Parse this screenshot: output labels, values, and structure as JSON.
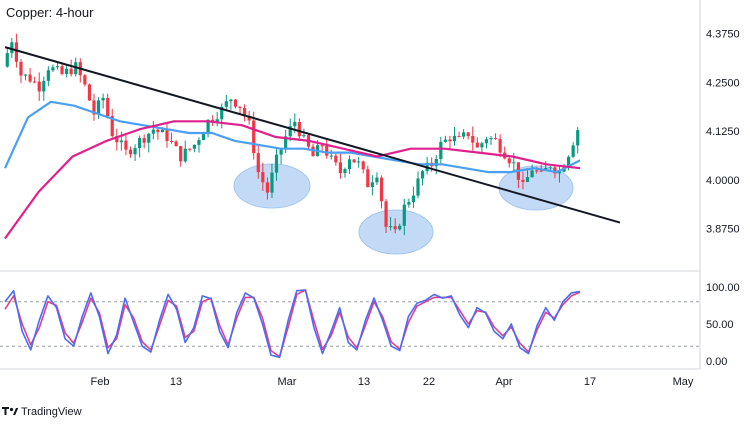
{
  "chart_data": [
    {
      "type": "candlestick",
      "title": "Copper: 4-hour",
      "ylim": [
        3.8,
        4.43
      ],
      "y_ticks": [
        "4.3750",
        "4.2500",
        "4.1250",
        "4.0000",
        "3.8750"
      ],
      "x_ticks": [
        "Feb",
        "13",
        "Mar",
        "13",
        "22",
        "Apr",
        "17",
        "May"
      ],
      "colors": {
        "up": "#089981",
        "down": "#f23645",
        "trendline": "#131722",
        "ma_fast": "#4a9ff5",
        "ma_slow": "#e0208c",
        "zone": "#bcd7f5",
        "zone_edge": "#9cc3ef"
      },
      "price_close_path": [
        {
          "x": 0,
          "y": 4.29
        },
        {
          "x": 2,
          "y": 4.36
        },
        {
          "x": 4,
          "y": 4.27
        },
        {
          "x": 6,
          "y": 4.26
        },
        {
          "x": 8,
          "y": 4.24
        },
        {
          "x": 10,
          "y": 4.29
        },
        {
          "x": 13,
          "y": 4.27
        },
        {
          "x": 16,
          "y": 4.29
        },
        {
          "x": 18,
          "y": 4.24
        },
        {
          "x": 20,
          "y": 4.17
        },
        {
          "x": 22,
          "y": 4.21
        },
        {
          "x": 24,
          "y": 4.12
        },
        {
          "x": 27,
          "y": 4.07
        },
        {
          "x": 30,
          "y": 4.1
        },
        {
          "x": 33,
          "y": 4.13
        },
        {
          "x": 36,
          "y": 4.11
        },
        {
          "x": 39,
          "y": 4.06
        },
        {
          "x": 42,
          "y": 4.09
        },
        {
          "x": 45,
          "y": 4.15
        },
        {
          "x": 48,
          "y": 4.18
        },
        {
          "x": 50,
          "y": 4.21
        },
        {
          "x": 52,
          "y": 4.19
        },
        {
          "x": 54,
          "y": 4.14
        },
        {
          "x": 56,
          "y": 4.02
        },
        {
          "x": 58,
          "y": 3.97
        },
        {
          "x": 60,
          "y": 4.05
        },
        {
          "x": 62,
          "y": 4.11
        },
        {
          "x": 64,
          "y": 4.15
        },
        {
          "x": 66,
          "y": 4.1
        },
        {
          "x": 68,
          "y": 4.06
        },
        {
          "x": 70,
          "y": 4.09
        },
        {
          "x": 72,
          "y": 4.05
        },
        {
          "x": 74,
          "y": 4.02
        },
        {
          "x": 76,
          "y": 4.06
        },
        {
          "x": 78,
          "y": 4.04
        },
        {
          "x": 80,
          "y": 3.99
        },
        {
          "x": 82,
          "y": 4.02
        },
        {
          "x": 84,
          "y": 3.88
        },
        {
          "x": 86,
          "y": 3.86
        },
        {
          "x": 88,
          "y": 3.93
        },
        {
          "x": 90,
          "y": 3.97
        },
        {
          "x": 92,
          "y": 4.02
        },
        {
          "x": 94,
          "y": 4.04
        },
        {
          "x": 96,
          "y": 4.09
        },
        {
          "x": 98,
          "y": 4.11
        },
        {
          "x": 100,
          "y": 4.1
        },
        {
          "x": 102,
          "y": 4.12
        },
        {
          "x": 104,
          "y": 4.08
        },
        {
          "x": 106,
          "y": 4.11
        },
        {
          "x": 108,
          "y": 4.1
        },
        {
          "x": 110,
          "y": 4.07
        },
        {
          "x": 112,
          "y": 4.04
        },
        {
          "x": 114,
          "y": 3.98
        },
        {
          "x": 116,
          "y": 4.03
        },
        {
          "x": 118,
          "y": 4.01
        },
        {
          "x": 120,
          "y": 4.04
        },
        {
          "x": 122,
          "y": 4.02
        },
        {
          "x": 124,
          "y": 4.07
        },
        {
          "x": 126,
          "y": 4.13
        }
      ],
      "series": [
        {
          "values": [
            4.03,
            4.16,
            4.2,
            4.19,
            4.17,
            4.15,
            4.14,
            4.13,
            4.12,
            4.12,
            4.1,
            4.09,
            4.08,
            4.08,
            4.07,
            4.07,
            4.06,
            4.05,
            4.04,
            4.04,
            4.03,
            4.02,
            4.02,
            4.03,
            4.02,
            4.05
          ]
        },
        {
          "values": [
            3.85,
            3.97,
            4.06,
            4.1,
            4.13,
            4.15,
            4.15,
            4.14,
            4.11,
            4.1,
            4.08,
            4.06,
            4.08,
            4.08,
            4.07,
            4.06,
            4.04,
            4.03
          ]
        }
      ],
      "trendline": [
        {
          "x": 0,
          "y": 4.34
        },
        {
          "x": 126,
          "y": 3.92
        }
      ],
      "highlight_zones": [
        "Mar low",
        "mid-Mar low",
        "early-Apr low"
      ]
    },
    {
      "type": "line",
      "title": "",
      "ylim": [
        0,
        100
      ],
      "y_ticks": [
        "100.00",
        "50.00",
        "0.00"
      ],
      "reference_lines": [
        80,
        20
      ],
      "series": [
        {
          "values": [
            80,
            95,
            40,
            15,
            55,
            88,
            72,
            30,
            20,
            60,
            92,
            60,
            10,
            35,
            85,
            52,
            20,
            12,
            55,
            90,
            70,
            25,
            45,
            88,
            84,
            40,
            18,
            65,
            92,
            85,
            50,
            8,
            5,
            55,
            95,
            96,
            45,
            10,
            40,
            72,
            25,
            15,
            55,
            85,
            55,
            20,
            14,
            60,
            78,
            82,
            90,
            85,
            88,
            62,
            45,
            72,
            65,
            40,
            30,
            50,
            18,
            10,
            48,
            72,
            55,
            80,
            92,
            94
          ]
        },
        {
          "values": [
            70,
            88,
            50,
            22,
            45,
            80,
            75,
            38,
            24,
            52,
            85,
            65,
            18,
            30,
            76,
            58,
            26,
            15,
            48,
            82,
            74,
            32,
            40,
            80,
            85,
            48,
            22,
            58,
            86,
            86,
            58,
            14,
            6,
            46,
            90,
            96,
            54,
            16,
            34,
            66,
            32,
            18,
            48,
            80,
            60,
            26,
            16,
            52,
            74,
            80,
            86,
            86,
            86,
            68,
            50,
            68,
            66,
            46,
            34,
            46,
            24,
            12,
            42,
            66,
            58,
            76,
            88,
            93
          ]
        }
      ],
      "colors": {
        "k": "#4a6cf7",
        "d": "#e0408c",
        "grid": "#9aa0a6"
      }
    }
  ],
  "watermark": "TradingView"
}
